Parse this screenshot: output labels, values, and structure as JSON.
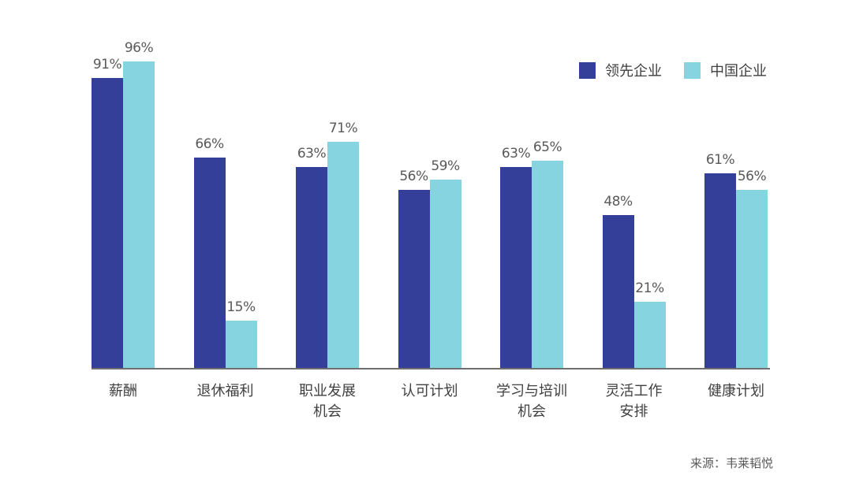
{
  "chart_data": {
    "type": "bar",
    "title": "",
    "xlabel": "",
    "ylabel": "",
    "ylim": [
      0,
      100
    ],
    "grid": false,
    "legend_position": "top-right",
    "categories": [
      "薪酬",
      "退休福利",
      "职业发展机会",
      "认可计划",
      "学习与培训机会",
      "灵活工作安排",
      "健康计划"
    ],
    "category_lines": [
      [
        "薪酬"
      ],
      [
        "退休福利"
      ],
      [
        "职业发展",
        "机会"
      ],
      [
        "认可计划"
      ],
      [
        "学习与培训",
        "机会"
      ],
      [
        "灵活工作",
        "安排"
      ],
      [
        "健康计划"
      ]
    ],
    "series": [
      {
        "name": "领先企业",
        "color": "#333f99",
        "values": [
          91,
          66,
          63,
          56,
          63,
          48,
          61
        ]
      },
      {
        "name": "中国企业",
        "color": "#86d4e0",
        "values": [
          96,
          15,
          71,
          59,
          65,
          21,
          56
        ]
      }
    ],
    "value_format": "{v}%"
  },
  "legend": {
    "items": [
      {
        "label": "领先企业",
        "color": "#333f99"
      },
      {
        "label": "中国企业",
        "color": "#86d4e0"
      }
    ]
  },
  "source": "来源：韦莱韬悦"
}
